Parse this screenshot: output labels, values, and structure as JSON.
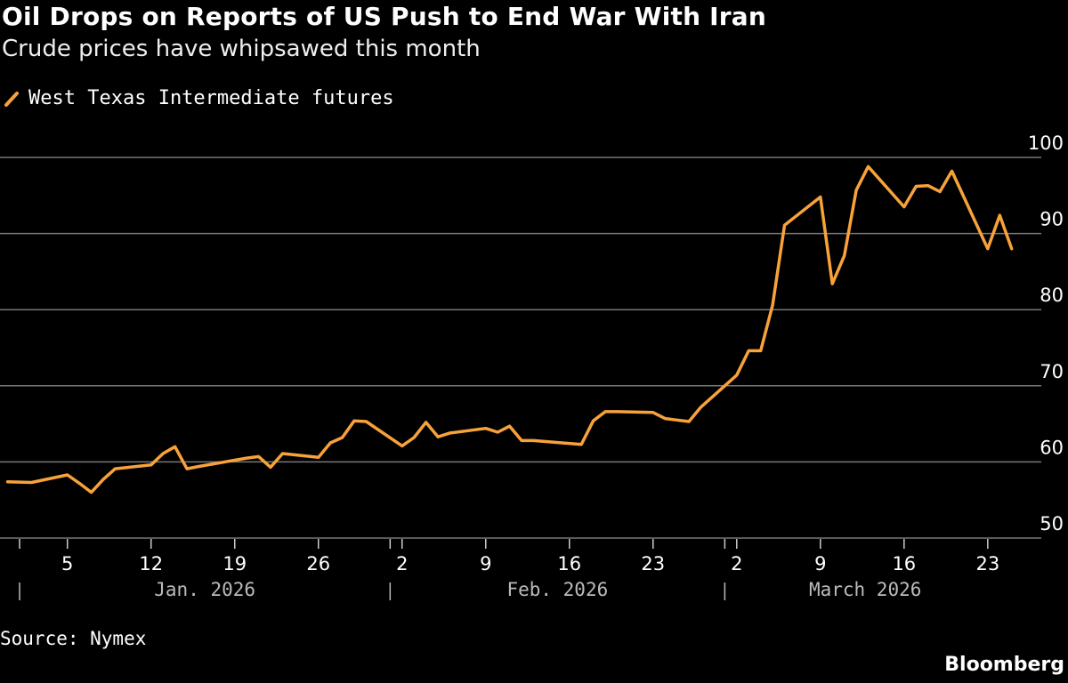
{
  "title": "Oil Drops on Reports of US Push to End War With Iran",
  "subtitle": "Crude prices have whipsawed this month",
  "source": "Source: Nymex",
  "brand": "Bloomberg",
  "colors": {
    "line": "#f7a23a",
    "grid": "#777777",
    "background": "#000000"
  },
  "chart_data": {
    "type": "line",
    "title": "Oil Drops on Reports of US Push to End War With Iran",
    "subtitle": "Crude prices have whipsawed this month",
    "legend_position": "top-left",
    "grid": true,
    "ylim": [
      50,
      100
    ],
    "yticks": [
      "100",
      "90",
      "80",
      "70",
      "60",
      "50"
    ],
    "xticks": [
      {
        "date": "2026-01-05",
        "label": "5"
      },
      {
        "date": "2026-01-12",
        "label": "12"
      },
      {
        "date": "2026-01-19",
        "label": "19"
      },
      {
        "date": "2026-01-26",
        "label": "26"
      },
      {
        "date": "2026-02-02",
        "label": "2"
      },
      {
        "date": "2026-02-09",
        "label": "9"
      },
      {
        "date": "2026-02-16",
        "label": "16"
      },
      {
        "date": "2026-02-23",
        "label": "23"
      },
      {
        "date": "2026-03-02",
        "label": "2"
      },
      {
        "date": "2026-03-09",
        "label": "9"
      },
      {
        "date": "2026-03-16",
        "label": "16"
      },
      {
        "date": "2026-03-23",
        "label": "23"
      }
    ],
    "months": [
      {
        "start": "2026-01-01",
        "end": "2026-02-01",
        "label": "Jan. 2026"
      },
      {
        "start": "2026-02-01",
        "end": "2026-03-01",
        "label": "Feb. 2026"
      },
      {
        "start": "2026-03-01",
        "end": "2026-04-01",
        "label": "March 2026"
      }
    ],
    "series": [
      {
        "name": "West Texas Intermediate futures",
        "x": [
          "2025-12-31",
          "2026-01-02",
          "2026-01-05",
          "2026-01-06",
          "2026-01-07",
          "2026-01-08",
          "2026-01-09",
          "2026-01-12",
          "2026-01-13",
          "2026-01-14",
          "2026-01-15",
          "2026-01-16",
          "2026-01-20",
          "2026-01-21",
          "2026-01-22",
          "2026-01-23",
          "2026-01-26",
          "2026-01-27",
          "2026-01-28",
          "2026-01-29",
          "2026-01-30",
          "2026-02-02",
          "2026-02-03",
          "2026-02-04",
          "2026-02-05",
          "2026-02-06",
          "2026-02-09",
          "2026-02-10",
          "2026-02-11",
          "2026-02-12",
          "2026-02-13",
          "2026-02-17",
          "2026-02-18",
          "2026-02-19",
          "2026-02-20",
          "2026-02-23",
          "2026-02-24",
          "2026-02-25",
          "2026-02-26",
          "2026-02-27",
          "2026-03-02",
          "2026-03-03",
          "2026-03-04",
          "2026-03-05",
          "2026-03-06",
          "2026-03-09",
          "2026-03-10",
          "2026-03-11",
          "2026-03-12",
          "2026-03-13",
          "2026-03-16",
          "2026-03-17",
          "2026-03-18",
          "2026-03-19",
          "2026-03-20",
          "2026-03-23",
          "2026-03-24",
          "2026-03-25"
        ],
        "values": [
          57.4,
          57.3,
          58.3,
          57.2,
          56.0,
          57.7,
          59.1,
          59.6,
          61.1,
          62.0,
          59.1,
          59.4,
          60.5,
          60.7,
          59.3,
          61.1,
          60.6,
          62.5,
          63.2,
          65.4,
          65.3,
          62.1,
          63.2,
          65.2,
          63.3,
          63.8,
          64.4,
          63.9,
          64.7,
          62.8,
          62.8,
          62.3,
          65.4,
          66.6,
          66.6,
          66.5,
          65.7,
          65.5,
          65.3,
          67.2,
          71.4,
          74.6,
          74.6,
          80.6,
          91.1,
          94.8,
          83.4,
          87.1,
          95.7,
          98.8,
          93.5,
          96.2,
          96.3,
          95.5,
          98.2,
          88.0,
          92.4,
          88.0
        ]
      }
    ]
  }
}
